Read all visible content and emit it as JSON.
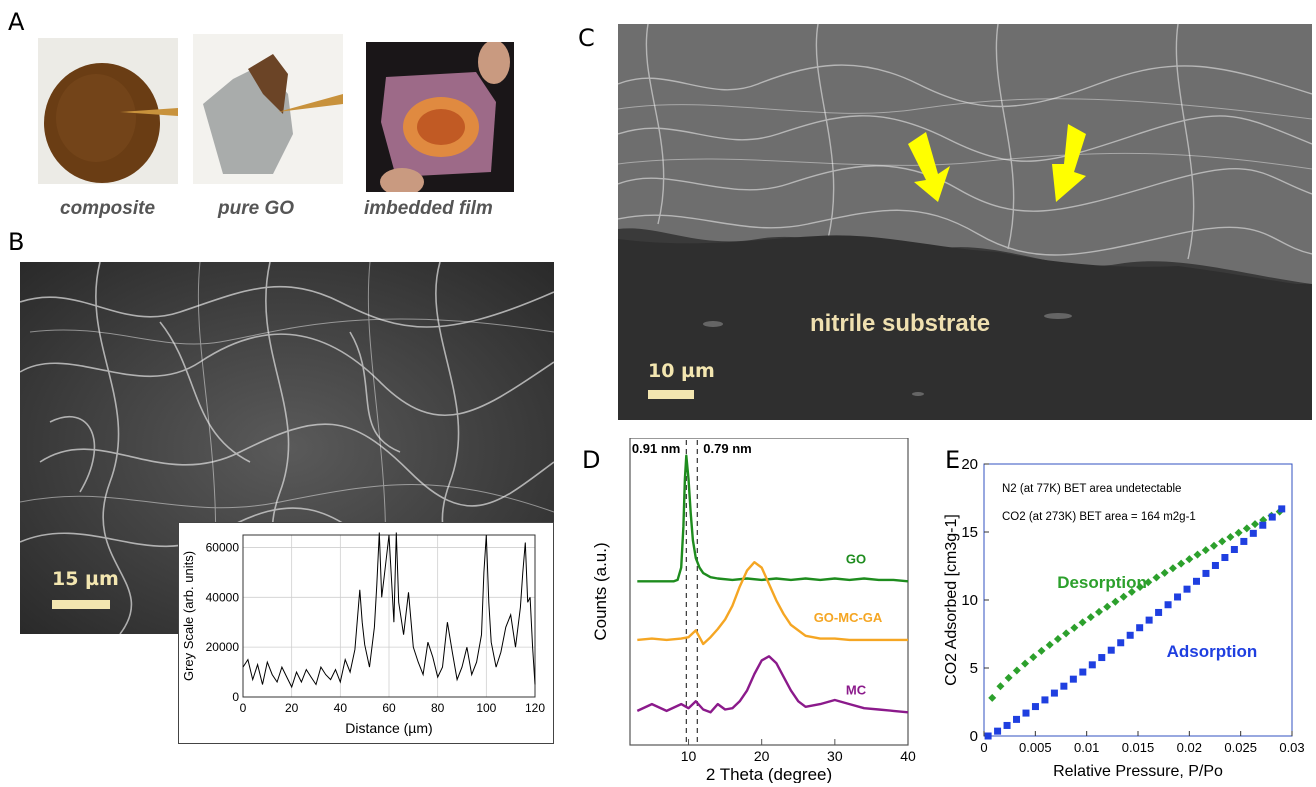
{
  "panels": {
    "a": "A",
    "b": "B",
    "c": "C",
    "d": "D",
    "e": "E"
  },
  "panel_a": {
    "captions": [
      "composite",
      "pure GO",
      "imbedded film"
    ]
  },
  "panel_b": {
    "scale_label": "15 µm"
  },
  "panel_c": {
    "substrate_label": "nitrile substrate",
    "scale_label": "10 µm",
    "arrow_color": "#ffff00"
  },
  "chart_data": [
    {
      "type": "line",
      "panel": "B-inset",
      "xlabel": "Distance (µm)",
      "ylabel": "Grey Scale (arb. units)",
      "xlim": [
        0,
        120
      ],
      "ylim": [
        0,
        65000
      ],
      "xticks": [
        0,
        20,
        40,
        60,
        80,
        100,
        120
      ],
      "yticks": [
        0,
        20000,
        40000,
        60000
      ],
      "ytick_labels": [
        "0",
        "20000",
        "40000",
        "60000"
      ],
      "grid": true,
      "series": [
        {
          "x": [
            0,
            2,
            4,
            6,
            8,
            10,
            12,
            14,
            16,
            18,
            20,
            22,
            24,
            26,
            28,
            30,
            32,
            34,
            36,
            38,
            40,
            42,
            44,
            46,
            48,
            49,
            50,
            52,
            54,
            55,
            56,
            57,
            58,
            60,
            62,
            63,
            64,
            66,
            68,
            70,
            72,
            74,
            76,
            78,
            80,
            82,
            84,
            86,
            88,
            90,
            92,
            94,
            96,
            98,
            99,
            100,
            101,
            102,
            104,
            106,
            108,
            110,
            112,
            114,
            115,
            116,
            117,
            118,
            119,
            120
          ],
          "y": [
            12000,
            15000,
            7000,
            13000,
            5000,
            14000,
            9000,
            6000,
            12000,
            8000,
            4000,
            10000,
            6000,
            11000,
            8000,
            5000,
            12000,
            9000,
            7000,
            11000,
            6000,
            15000,
            10000,
            19000,
            43000,
            30000,
            21000,
            12000,
            28000,
            45000,
            66000,
            40000,
            48000,
            65000,
            30000,
            66000,
            38000,
            25000,
            42000,
            20000,
            14000,
            9000,
            22000,
            16000,
            8000,
            12000,
            30000,
            18000,
            7000,
            12000,
            20000,
            9000,
            14000,
            25000,
            50000,
            65000,
            38000,
            22000,
            12000,
            18000,
            28000,
            33000,
            20000,
            36000,
            50000,
            62000,
            38000,
            40000,
            20000,
            5000
          ],
          "color": "#000000"
        }
      ]
    },
    {
      "type": "line",
      "panel": "D",
      "xlabel": "2 Theta (degree)",
      "ylabel": "Counts (a.u.)",
      "xlim": [
        2,
        40
      ],
      "xticks": [
        10,
        20,
        30,
        40
      ],
      "annotations": [
        "0.91 nm",
        "0.79 nm"
      ],
      "dashed_lines_x": [
        9.7,
        11.2
      ],
      "series": [
        {
          "name": "GO",
          "color": "#1e8c1e",
          "x": [
            3,
            5,
            7,
            8,
            8.5,
            9,
            9.3,
            9.5,
            9.7,
            10,
            10.3,
            10.6,
            11,
            11.5,
            12,
            13,
            14,
            16,
            18,
            20,
            22,
            24,
            26,
            28,
            30,
            32,
            34,
            36,
            38,
            40
          ],
          "y": [
            0.6,
            0.6,
            0.6,
            0.6,
            0.61,
            0.7,
            1.0,
            1.35,
            1.52,
            1.35,
            1.1,
            0.9,
            0.77,
            0.7,
            0.66,
            0.63,
            0.62,
            0.61,
            0.62,
            0.61,
            0.62,
            0.61,
            0.62,
            0.61,
            0.62,
            0.61,
            0.62,
            0.61,
            0.61,
            0.6
          ]
        },
        {
          "name": "GO-MC-GA",
          "color": "#f5a623",
          "x": [
            3,
            5,
            7,
            9,
            10,
            11,
            11.5,
            12,
            13,
            14,
            15,
            16,
            17,
            18,
            19,
            20,
            21,
            22,
            23,
            24,
            26,
            28,
            30,
            32,
            34,
            36,
            38,
            40
          ],
          "y": [
            0.17,
            0.18,
            0.17,
            0.18,
            0.19,
            0.24,
            0.19,
            0.14,
            0.19,
            0.25,
            0.32,
            0.42,
            0.56,
            0.68,
            0.74,
            0.7,
            0.58,
            0.46,
            0.36,
            0.28,
            0.2,
            0.18,
            0.18,
            0.17,
            0.17,
            0.17,
            0.17,
            0.17
          ]
        },
        {
          "name": "MC",
          "color": "#8b1a8b",
          "x": [
            3,
            5,
            7,
            9,
            10,
            11,
            12,
            13,
            14,
            15,
            16,
            17,
            18,
            19,
            20,
            21,
            22,
            23,
            24,
            25,
            26,
            28,
            30,
            32,
            34,
            36,
            38,
            40
          ],
          "y": [
            -0.35,
            -0.3,
            -0.35,
            -0.3,
            -0.33,
            -0.28,
            -0.34,
            -0.36,
            -0.3,
            -0.34,
            -0.33,
            -0.28,
            -0.2,
            -0.08,
            0.02,
            0.05,
            0.0,
            -0.1,
            -0.2,
            -0.28,
            -0.32,
            -0.3,
            -0.27,
            -0.3,
            -0.33,
            -0.34,
            -0.35,
            -0.36
          ]
        }
      ]
    },
    {
      "type": "scatter",
      "panel": "E",
      "xlabel": "Relative Pressure, P/Po",
      "ylabel": "CO2 Adsorbed [cm3g-1]",
      "xlim": [
        0,
        0.03
      ],
      "ylim": [
        0,
        20
      ],
      "xticks": [
        0,
        0.005,
        0.01,
        0.015,
        0.02,
        0.025,
        0.03
      ],
      "xtick_labels": [
        "0",
        "0.005",
        "0.01",
        "0.015",
        "0.02",
        "0.025",
        "0.03"
      ],
      "yticks": [
        0,
        5,
        10,
        15,
        20
      ],
      "annotations": [
        "N2 (at 77K) BET area undetectable",
        "CO2 (at 273K) BET area = 164 m2g-1"
      ],
      "series": [
        {
          "name": "Desorption",
          "color": "#2ca02c",
          "marker": "diamond"
        },
        {
          "name": "Adsorption",
          "color": "#1f3fe0",
          "marker": "square"
        }
      ]
    }
  ]
}
